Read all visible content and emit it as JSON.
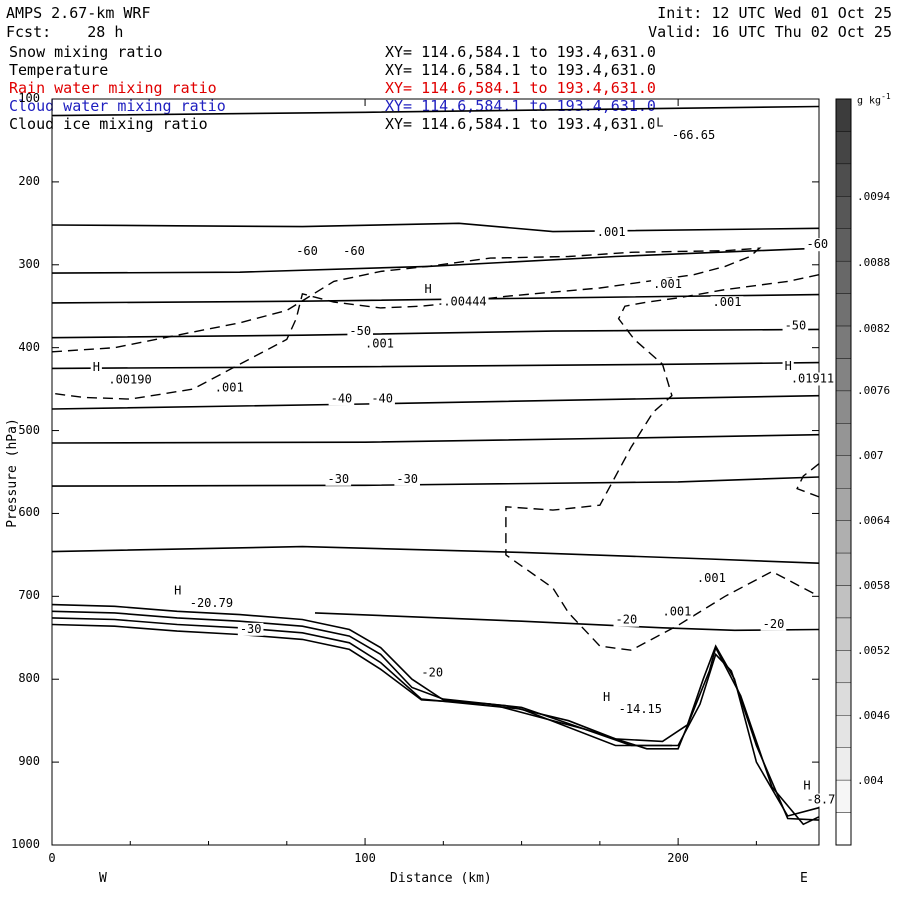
{
  "header": {
    "model": "AMPS 2.67-km WRF",
    "forecast": "Fcst:    28 h",
    "init": "Init: 12 UTC Wed 01 Oct 25",
    "valid": "Valid: 16 UTC Thu 02 Oct 25"
  },
  "legend": [
    {
      "name": "Snow mixing ratio",
      "xy": "XY= 114.6,584.1 to 193.4,631.0",
      "color": "#000000"
    },
    {
      "name": "Temperature",
      "xy": "XY= 114.6,584.1 to 193.4,631.0",
      "color": "#000000"
    },
    {
      "name": "Rain water mixing ratio",
      "xy": "XY= 114.6,584.1 to 193.4,631.0",
      "color": "#e00000"
    },
    {
      "name": "Cloud water mixing ratio",
      "xy": "XY= 114.6,584.1 to 193.4,631.0",
      "color": "#2020c0"
    },
    {
      "name": "Cloud ice mixing ratio",
      "xy": "XY= 114.6,584.1 to 193.4,631.0",
      "color": "#000000"
    }
  ],
  "chart_data": {
    "type": "cross-section contour",
    "xlabel": "Distance (km)",
    "ylabel": "Pressure (hPa)",
    "xlim": [
      0,
      245
    ],
    "ylim": [
      1000,
      100
    ],
    "x_ticks": [
      "0",
      "100",
      "200"
    ],
    "y_ticks": [
      "100",
      "200",
      "300",
      "400",
      "500",
      "600",
      "700",
      "800",
      "900",
      "1000"
    ],
    "direction_left": "W",
    "direction_right": "E",
    "colorbar": {
      "unit": "g kg",
      "unit_exp": "-1",
      "labels": [
        ".0094",
        ".0088",
        ".0082",
        ".0076",
        ".007",
        ".0064",
        ".0058",
        ".0052",
        ".0046",
        ".004"
      ]
    },
    "isotherms": [
      {
        "label": "",
        "points": [
          [
            0,
            252
          ],
          [
            40,
            253
          ],
          [
            80,
            254
          ],
          [
            130,
            250
          ],
          [
            160,
            260
          ],
          [
            245,
            256
          ]
        ]
      },
      {
        "label": "-60",
        "points": [
          [
            0,
            310
          ],
          [
            60,
            309
          ],
          [
            120,
            302
          ],
          [
            180,
            290
          ],
          [
            245,
            280
          ]
        ]
      },
      {
        "label": "",
        "points": [
          [
            0,
            346
          ],
          [
            80,
            344
          ],
          [
            160,
            340
          ],
          [
            245,
            336
          ]
        ]
      },
      {
        "label": "-50",
        "points": [
          [
            0,
            388
          ],
          [
            80,
            385
          ],
          [
            160,
            380
          ],
          [
            245,
            378
          ]
        ]
      },
      {
        "label": "",
        "points": [
          [
            0,
            425
          ],
          [
            100,
            423
          ],
          [
            200,
            420
          ],
          [
            245,
            418
          ]
        ]
      },
      {
        "label": "-40",
        "points": [
          [
            0,
            474
          ],
          [
            100,
            468
          ],
          [
            200,
            461
          ],
          [
            245,
            458
          ]
        ]
      },
      {
        "label": "",
        "points": [
          [
            0,
            515
          ],
          [
            100,
            514
          ],
          [
            200,
            508
          ],
          [
            245,
            505
          ]
        ]
      },
      {
        "label": "-30",
        "points": [
          [
            0,
            567
          ],
          [
            100,
            566
          ],
          [
            200,
            562
          ],
          [
            245,
            556
          ]
        ]
      },
      {
        "label": "",
        "points": [
          [
            0,
            646
          ],
          [
            80,
            640
          ],
          [
            150,
            647
          ],
          [
            210,
            655
          ],
          [
            245,
            660
          ]
        ]
      },
      {
        "label": "-20",
        "points": [
          [
            84,
            720
          ],
          [
            150,
            730
          ],
          [
            195,
            738
          ],
          [
            218,
            741
          ],
          [
            245,
            740
          ]
        ]
      },
      {
        "label": "",
        "points": [
          [
            0,
            120
          ],
          [
            100,
            116
          ],
          [
            245,
            109
          ]
        ]
      }
    ],
    "terrain_lines": [
      [
        [
          0,
          710
        ],
        [
          20,
          712
        ],
        [
          40,
          718
        ],
        [
          60,
          722
        ],
        [
          80,
          728
        ],
        [
          95,
          740
        ],
        [
          105,
          762
        ],
        [
          115,
          800
        ],
        [
          125,
          825
        ],
        [
          145,
          832
        ],
        [
          165,
          850
        ],
        [
          180,
          872
        ],
        [
          195,
          875
        ],
        [
          203,
          855
        ],
        [
          208,
          800
        ],
        [
          212,
          760
        ],
        [
          218,
          800
        ],
        [
          225,
          900
        ],
        [
          235,
          965
        ],
        [
          245,
          955
        ]
      ],
      [
        [
          0,
          718
        ],
        [
          20,
          720
        ],
        [
          40,
          726
        ],
        [
          60,
          730
        ],
        [
          80,
          736
        ],
        [
          95,
          748
        ],
        [
          105,
          770
        ],
        [
          115,
          810
        ],
        [
          125,
          824
        ],
        [
          150,
          834
        ],
        [
          170,
          860
        ],
        [
          185,
          880
        ],
        [
          198,
          880
        ]
      ],
      [
        [
          0,
          726
        ],
        [
          20,
          728
        ],
        [
          40,
          734
        ],
        [
          60,
          738
        ],
        [
          80,
          744
        ],
        [
          95,
          756
        ],
        [
          105,
          780
        ],
        [
          118,
          824
        ],
        [
          150,
          836
        ],
        [
          180,
          880
        ],
        [
          200,
          880
        ],
        [
          207,
          830
        ],
        [
          212,
          770
        ],
        [
          217,
          790
        ],
        [
          225,
          880
        ],
        [
          235,
          968
        ],
        [
          245,
          970
        ]
      ],
      [
        [
          0,
          734
        ],
        [
          20,
          736
        ],
        [
          40,
          742
        ],
        [
          60,
          746
        ],
        [
          80,
          752
        ],
        [
          95,
          764
        ],
        [
          105,
          788
        ],
        [
          118,
          825
        ],
        [
          140,
          830
        ],
        [
          170,
          860
        ],
        [
          190,
          884
        ],
        [
          200,
          884
        ],
        [
          210,
          790
        ],
        [
          212,
          762
        ],
        [
          220,
          820
        ],
        [
          230,
          930
        ],
        [
          240,
          975
        ],
        [
          245,
          966
        ]
      ]
    ],
    "snow_contours": [
      {
        "label": ".001",
        "points": [
          [
            0,
            405
          ],
          [
            20,
            400
          ],
          [
            40,
            385
          ],
          [
            60,
            370
          ],
          [
            75,
            355
          ],
          [
            90,
            320
          ],
          [
            105,
            308
          ],
          [
            120,
            302
          ],
          [
            140,
            292
          ],
          [
            165,
            290
          ],
          [
            185,
            285
          ],
          [
            215,
            283
          ],
          [
            226,
            280
          ],
          [
            223,
            290
          ],
          [
            215,
            302
          ],
          [
            205,
            312
          ],
          [
            190,
            320
          ],
          [
            175,
            328
          ],
          [
            160,
            333
          ],
          [
            145,
            338
          ],
          [
            130,
            345
          ],
          [
            118,
            350
          ],
          [
            105,
            352
          ],
          [
            90,
            345
          ],
          [
            80,
            335
          ],
          [
            78,
            365
          ],
          [
            75,
            390
          ],
          [
            60,
            420
          ],
          [
            45,
            450
          ],
          [
            25,
            462
          ],
          [
            10,
            460
          ],
          [
            0,
            455
          ]
        ]
      },
      {
        "label": ".001",
        "points": [
          [
            245,
            312
          ],
          [
            235,
            320
          ],
          [
            215,
            330
          ],
          [
            200,
            340
          ],
          [
            190,
            345
          ],
          [
            183,
            350
          ],
          [
            181,
            365
          ],
          [
            186,
            390
          ],
          [
            195,
            420
          ],
          [
            198,
            458
          ],
          [
            192,
            478
          ],
          [
            185,
            520
          ],
          [
            175,
            590
          ],
          [
            160,
            596
          ],
          [
            145,
            592
          ],
          [
            145,
            650
          ],
          [
            160,
            690
          ],
          [
            165,
            720
          ],
          [
            175,
            760
          ],
          [
            185,
            765
          ],
          [
            200,
            735
          ],
          [
            215,
            700
          ],
          [
            230,
            670
          ],
          [
            245,
            700
          ]
        ]
      },
      {
        "label": "",
        "points": [
          [
            245,
            540
          ],
          [
            240,
            555
          ],
          [
            238,
            570
          ],
          [
            245,
            580
          ]
        ]
      }
    ],
    "annotations": [
      {
        "text": "H",
        "x": 13,
        "y": 428
      },
      {
        "text": ".00190",
        "x": 18,
        "y": 443
      },
      {
        "text": "H",
        "x": 119,
        "y": 334
      },
      {
        "text": ".00444",
        "x": 125,
        "y": 349
      },
      {
        "text": "H",
        "x": 234,
        "y": 427
      },
      {
        "text": ".01911",
        "x": 236,
        "y": 442
      },
      {
        "text": "L",
        "x": 193,
        "y": 133
      },
      {
        "text": "-66.65",
        "x": 198,
        "y": 148
      },
      {
        "text": "H",
        "x": 39,
        "y": 698
      },
      {
        "text": "-20.79",
        "x": 44,
        "y": 713
      },
      {
        "text": "H",
        "x": 176,
        "y": 826
      },
      {
        "text": "-14.15",
        "x": 181,
        "y": 841
      },
      {
        "text": "H",
        "x": 240,
        "y": 933
      },
      {
        "text": "-8.7",
        "x": 241,
        "y": 950
      },
      {
        "text": "-60",
        "x": 78,
        "y": 288
      },
      {
        "text": "-60",
        "x": 93,
        "y": 288
      },
      {
        "text": "-60",
        "x": 241,
        "y": 280
      },
      {
        "text": "-50",
        "x": 95,
        "y": 385
      },
      {
        "text": "-50",
        "x": 234,
        "y": 378
      },
      {
        "text": "-40",
        "x": 89,
        "y": 466
      },
      {
        "text": "-40",
        "x": 102,
        "y": 466
      },
      {
        "text": "-30",
        "x": 88,
        "y": 563
      },
      {
        "text": "-30",
        "x": 110,
        "y": 563
      },
      {
        "text": "-30",
        "x": 60,
        "y": 744
      },
      {
        "text": "-20",
        "x": 118,
        "y": 797
      },
      {
        "text": "-20",
        "x": 180,
        "y": 733
      },
      {
        "text": "-20",
        "x": 227,
        "y": 738
      },
      {
        "text": ".001",
        "x": 174,
        "y": 265
      },
      {
        "text": ".001",
        "x": 192,
        "y": 328
      },
      {
        "text": ".001",
        "x": 211,
        "y": 350
      },
      {
        "text": ".001",
        "x": 100,
        "y": 400
      },
      {
        "text": ".001",
        "x": 52,
        "y": 453
      },
      {
        "text": ".001",
        "x": 206,
        "y": 683
      },
      {
        "text": ".001",
        "x": 195,
        "y": 723
      }
    ]
  }
}
